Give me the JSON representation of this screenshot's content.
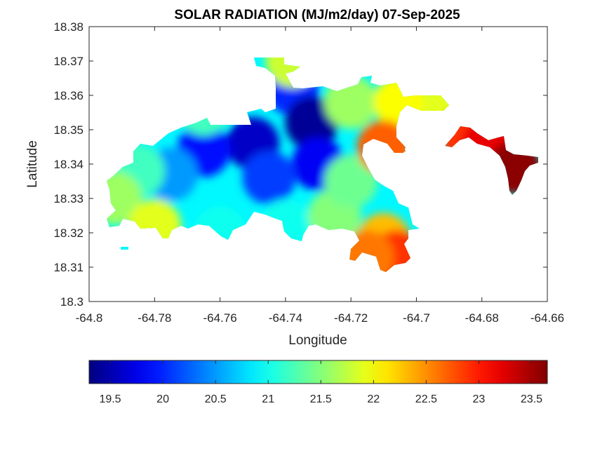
{
  "chart_data": {
    "type": "heatmap",
    "title": "SOLAR RADIATION (MJ/m2/day) 07-Sep-2025",
    "xlabel": "Longitude",
    "ylabel": "Latitude",
    "xlim": [
      -64.8,
      -64.66
    ],
    "ylim": [
      18.3,
      18.38
    ],
    "xticks": [
      "-64.8",
      "-64.78",
      "-64.76",
      "-64.74",
      "-64.72",
      "-64.7",
      "-64.68",
      "-64.66"
    ],
    "yticks": [
      "18.3",
      "18.31",
      "18.32",
      "18.33",
      "18.34",
      "18.35",
      "18.36",
      "18.37",
      "18.38"
    ],
    "grid": false,
    "colormap": "jet",
    "colorbar": {
      "location": "bottom",
      "range": [
        19.3,
        23.65
      ],
      "ticks": [
        "19.5",
        "20",
        "20.5",
        "21",
        "21.5",
        "22",
        "22.5",
        "23",
        "23.5"
      ]
    },
    "value_range": [
      19.3,
      23.65
    ],
    "samples": [
      {
        "lon": -64.738,
        "lat": 18.362,
        "value": 20.0
      },
      {
        "lon": -64.732,
        "lat": 18.352,
        "value": 19.4
      },
      {
        "lon": -64.75,
        "lat": 18.346,
        "value": 19.6
      },
      {
        "lon": -64.765,
        "lat": 18.344,
        "value": 19.9
      },
      {
        "lon": -64.73,
        "lat": 18.34,
        "value": 19.8
      },
      {
        "lon": -64.745,
        "lat": 18.336,
        "value": 20.1
      },
      {
        "lon": -64.775,
        "lat": 18.337,
        "value": 20.5
      },
      {
        "lon": -64.785,
        "lat": 18.338,
        "value": 21.2
      },
      {
        "lon": -64.792,
        "lat": 18.33,
        "value": 21.6
      },
      {
        "lon": -64.78,
        "lat": 18.322,
        "value": 21.9
      },
      {
        "lon": -64.76,
        "lat": 18.32,
        "value": 21.0
      },
      {
        "lon": -64.74,
        "lat": 18.322,
        "value": 21.0
      },
      {
        "lon": -64.725,
        "lat": 18.325,
        "value": 21.5
      },
      {
        "lon": -64.72,
        "lat": 18.335,
        "value": 21.4
      },
      {
        "lon": -64.72,
        "lat": 18.358,
        "value": 21.6
      },
      {
        "lon": -64.705,
        "lat": 18.358,
        "value": 22.0
      },
      {
        "lon": -64.69,
        "lat": 18.357,
        "value": 21.9
      },
      {
        "lon": -64.71,
        "lat": 18.345,
        "value": 22.7
      },
      {
        "lon": -64.71,
        "lat": 18.318,
        "value": 22.3
      },
      {
        "lon": -64.706,
        "lat": 18.313,
        "value": 22.9
      },
      {
        "lon": -64.715,
        "lat": 18.313,
        "value": 22.6
      },
      {
        "lon": -64.685,
        "lat": 18.349,
        "value": 22.9
      },
      {
        "lon": -64.678,
        "lat": 18.346,
        "value": 23.2
      },
      {
        "lon": -64.67,
        "lat": 18.339,
        "value": 23.6
      },
      {
        "lon": -64.765,
        "lat": 18.356,
        "value": 21.2
      },
      {
        "lon": -64.738,
        "lat": 18.37,
        "value": 21.8
      }
    ]
  }
}
